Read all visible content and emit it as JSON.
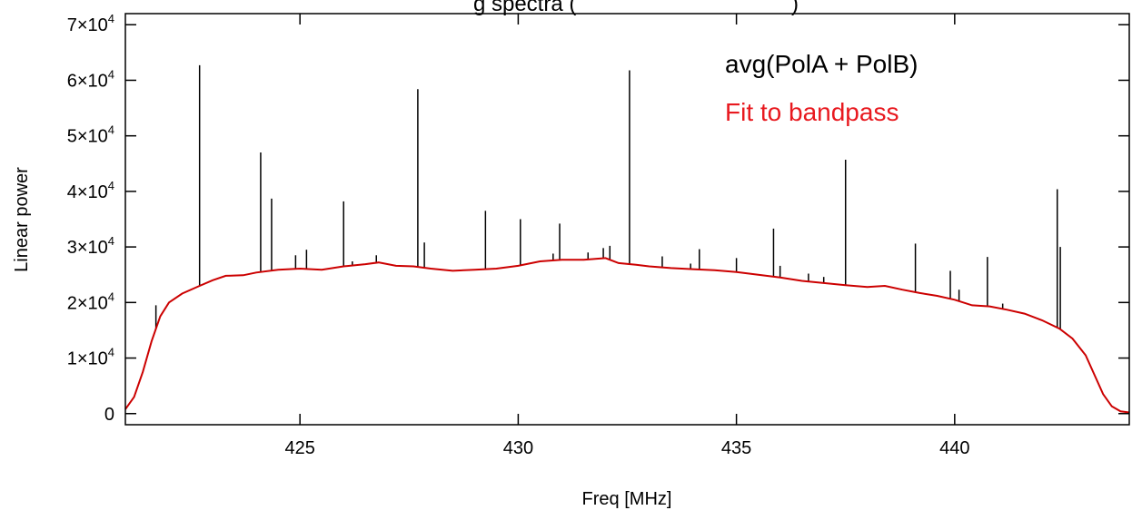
{
  "chart_data": {
    "type": "line",
    "title_partial": "g spectra (",
    "title_partial_right": ")",
    "xlabel": "Freq [MHz]",
    "ylabel": "Linear power",
    "xlim": [
      421.0,
      444.0
    ],
    "ylim": [
      -2000,
      72000
    ],
    "x_ticks": [
      {
        "value": 425,
        "label": "425"
      },
      {
        "value": 430,
        "label": "430"
      },
      {
        "value": 435,
        "label": "435"
      },
      {
        "value": 440,
        "label": "440"
      }
    ],
    "y_ticks": [
      {
        "value": 0,
        "mant": "0",
        "exp": ""
      },
      {
        "value": 10000,
        "mant": "1×10",
        "exp": "4"
      },
      {
        "value": 20000,
        "mant": "2×10",
        "exp": "4"
      },
      {
        "value": 30000,
        "mant": "3×10",
        "exp": "4"
      },
      {
        "value": 40000,
        "mant": "4×10",
        "exp": "4"
      },
      {
        "value": 50000,
        "mant": "5×10",
        "exp": "4"
      },
      {
        "value": 60000,
        "mant": "6×10",
        "exp": "4"
      },
      {
        "value": 70000,
        "mant": "7×10",
        "exp": "4"
      }
    ],
    "grid": false,
    "legend_placement": "top-right",
    "series": [
      {
        "name": "avg(PolA + PolB)",
        "color": "#000000",
        "spikes": [
          [
            421.7,
            19500
          ],
          [
            422.7,
            62700
          ],
          [
            423.4,
            24800
          ],
          [
            424.1,
            47000
          ],
          [
            424.35,
            38700
          ],
          [
            424.9,
            28500
          ],
          [
            425.15,
            29500
          ],
          [
            426.0,
            38200
          ],
          [
            426.2,
            27400
          ],
          [
            426.75,
            28500
          ],
          [
            427.7,
            58400
          ],
          [
            427.85,
            30800
          ],
          [
            429.25,
            36500
          ],
          [
            430.05,
            35000
          ],
          [
            430.8,
            28800
          ],
          [
            430.95,
            34200
          ],
          [
            431.6,
            29000
          ],
          [
            431.95,
            29800
          ],
          [
            432.1,
            30200
          ],
          [
            432.55,
            61800
          ],
          [
            433.3,
            28300
          ],
          [
            433.95,
            27000
          ],
          [
            434.15,
            29600
          ],
          [
            435.0,
            28000
          ],
          [
            435.85,
            33300
          ],
          [
            436.0,
            26600
          ],
          [
            436.65,
            25200
          ],
          [
            437.0,
            24600
          ],
          [
            437.5,
            45700
          ],
          [
            439.1,
            30600
          ],
          [
            439.9,
            25700
          ],
          [
            440.1,
            22300
          ],
          [
            440.75,
            28200
          ],
          [
            441.1,
            19800
          ],
          [
            441.95,
            16800
          ],
          [
            442.35,
            40400
          ],
          [
            442.42,
            30000
          ]
        ]
      },
      {
        "name": "Fit to bandpass",
        "color": "#cc0000",
        "points": [
          [
            421.0,
            800
          ],
          [
            421.2,
            3000
          ],
          [
            421.4,
            7500
          ],
          [
            421.6,
            13000
          ],
          [
            421.8,
            17500
          ],
          [
            422.0,
            20000
          ],
          [
            422.3,
            21600
          ],
          [
            422.7,
            23000
          ],
          [
            423.0,
            24000
          ],
          [
            423.3,
            24800
          ],
          [
            423.7,
            24900
          ],
          [
            424.0,
            25400
          ],
          [
            424.5,
            25900
          ],
          [
            425.0,
            26100
          ],
          [
            425.5,
            25900
          ],
          [
            426.0,
            26500
          ],
          [
            426.5,
            26900
          ],
          [
            426.8,
            27200
          ],
          [
            427.2,
            26600
          ],
          [
            427.6,
            26500
          ],
          [
            428.0,
            26100
          ],
          [
            428.5,
            25700
          ],
          [
            429.0,
            25900
          ],
          [
            429.5,
            26100
          ],
          [
            430.0,
            26600
          ],
          [
            430.5,
            27400
          ],
          [
            431.0,
            27700
          ],
          [
            431.5,
            27700
          ],
          [
            432.0,
            28000
          ],
          [
            432.3,
            27100
          ],
          [
            432.7,
            26800
          ],
          [
            433.0,
            26500
          ],
          [
            433.5,
            26200
          ],
          [
            434.0,
            26000
          ],
          [
            434.5,
            25800
          ],
          [
            435.0,
            25500
          ],
          [
            435.5,
            25000
          ],
          [
            436.0,
            24500
          ],
          [
            436.5,
            23900
          ],
          [
            437.0,
            23500
          ],
          [
            437.5,
            23100
          ],
          [
            438.0,
            22800
          ],
          [
            438.4,
            23000
          ],
          [
            438.8,
            22300
          ],
          [
            439.2,
            21700
          ],
          [
            439.6,
            21200
          ],
          [
            440.0,
            20500
          ],
          [
            440.4,
            19500
          ],
          [
            440.8,
            19300
          ],
          [
            441.2,
            18700
          ],
          [
            441.6,
            18000
          ],
          [
            442.0,
            16800
          ],
          [
            442.4,
            15300
          ],
          [
            442.7,
            13500
          ],
          [
            443.0,
            10500
          ],
          [
            443.2,
            7000
          ],
          [
            443.4,
            3500
          ],
          [
            443.6,
            1300
          ],
          [
            443.8,
            400
          ],
          [
            444.0,
            200
          ]
        ]
      }
    ]
  }
}
